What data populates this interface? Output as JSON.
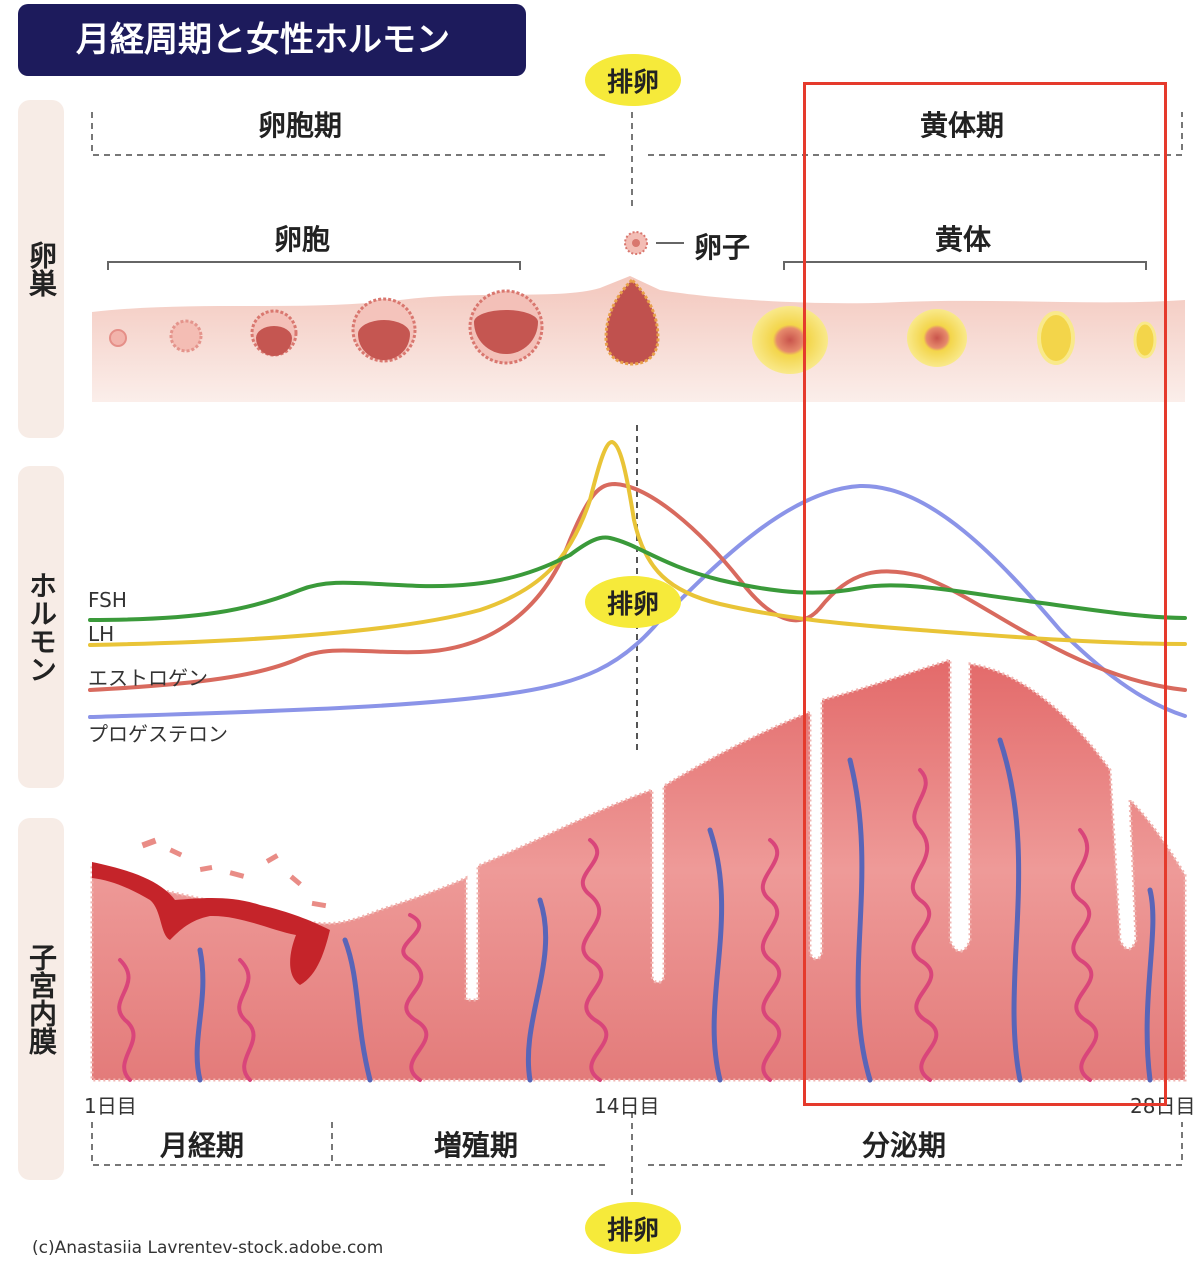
{
  "title": "月経周期と女性ホルモン",
  "ovulation": "排卵",
  "phases_top": {
    "follicular": "卵胞期",
    "luteal": "黄体期"
  },
  "ovary": {
    "side_label": "卵巣",
    "follicle": "卵胞",
    "egg": "卵子",
    "corpus_luteum": "黄体"
  },
  "hormones": {
    "side_label": "ホルモン",
    "legend": [
      "FSH",
      "LH",
      "エストロゲン",
      "プロゲステロン"
    ],
    "colors": {
      "FSH": "#3a9a3a",
      "LH": "#e9c437",
      "エストロゲン": "#d86a5e",
      "プロゲステロン": "#8b94e8"
    }
  },
  "endometrium": {
    "side_label": "子宮内膜"
  },
  "days": {
    "day1": "1日目",
    "day14": "14日目",
    "day28": "28日目"
  },
  "phases_bottom": {
    "menstrual": "月経期",
    "proliferative": "増殖期",
    "secretory": "分泌期"
  },
  "credit": "(c)Anastasiia Lavrentev-stock.adobe.com"
}
